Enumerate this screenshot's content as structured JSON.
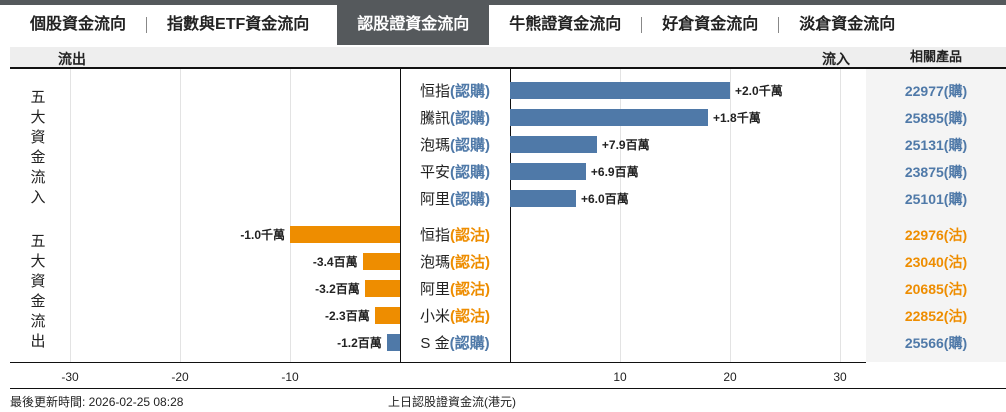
{
  "tabs": [
    {
      "label": "個股資金流向"
    },
    {
      "label": "指數與ETF資金流向"
    },
    {
      "label": "認股證資金流向",
      "active": true
    },
    {
      "label": "牛熊證資金流向"
    },
    {
      "label": "好倉資金流向"
    },
    {
      "label": "淡倉資金流向"
    }
  ],
  "header": {
    "outflow": "流出",
    "inflow": "流入",
    "products": "相關產品"
  },
  "side": {
    "inflow": "五大資金流入",
    "outflow": "五大資金流出"
  },
  "colors": {
    "call": "#4f79a8",
    "put": "#ee8d00"
  },
  "rows": [
    {
      "name": "恒指",
      "type": "(認購)",
      "kind": "call",
      "value": 20,
      "label": "+2.0千萬",
      "product": "22977(購)"
    },
    {
      "name": "騰訊",
      "type": "(認購)",
      "kind": "call",
      "value": 18,
      "label": "+1.8千萬",
      "product": "25895(購)"
    },
    {
      "name": "泡瑪",
      "type": "(認購)",
      "kind": "call",
      "value": 7.9,
      "label": "+7.9百萬",
      "product": "25131(購)"
    },
    {
      "name": "平安",
      "type": "(認購)",
      "kind": "call",
      "value": 6.9,
      "label": "+6.9百萬",
      "product": "23875(購)"
    },
    {
      "name": "阿里",
      "type": "(認購)",
      "kind": "call",
      "value": 6.0,
      "label": "+6.0百萬",
      "product": "25101(購)"
    },
    {
      "name": "恒指",
      "type": "(認沽)",
      "kind": "put",
      "value": -10,
      "label": "-1.0千萬",
      "product": "22976(沽)"
    },
    {
      "name": "泡瑪",
      "type": "(認沽)",
      "kind": "put",
      "value": -3.4,
      "label": "-3.4百萬",
      "product": "23040(沽)"
    },
    {
      "name": "阿里",
      "type": "(認沽)",
      "kind": "put",
      "value": -3.2,
      "label": "-3.2百萬",
      "product": "20685(沽)"
    },
    {
      "name": "小米",
      "type": "(認沽)",
      "kind": "put",
      "value": -2.3,
      "label": "-2.3百萬",
      "product": "22852(沽)"
    },
    {
      "name": "S 金",
      "type": "(認購)",
      "kind": "call",
      "value": -1.2,
      "label": "-1.2百萬",
      "product": "25566(購)"
    }
  ],
  "axis": {
    "ticks": [
      -30,
      -20,
      -10,
      10,
      20,
      30
    ],
    "unit_note": "百萬"
  },
  "footer": {
    "updated": "最後更新時間: 2026-02-25 08:28",
    "caption": "上日認股證資金流(港元)"
  }
}
